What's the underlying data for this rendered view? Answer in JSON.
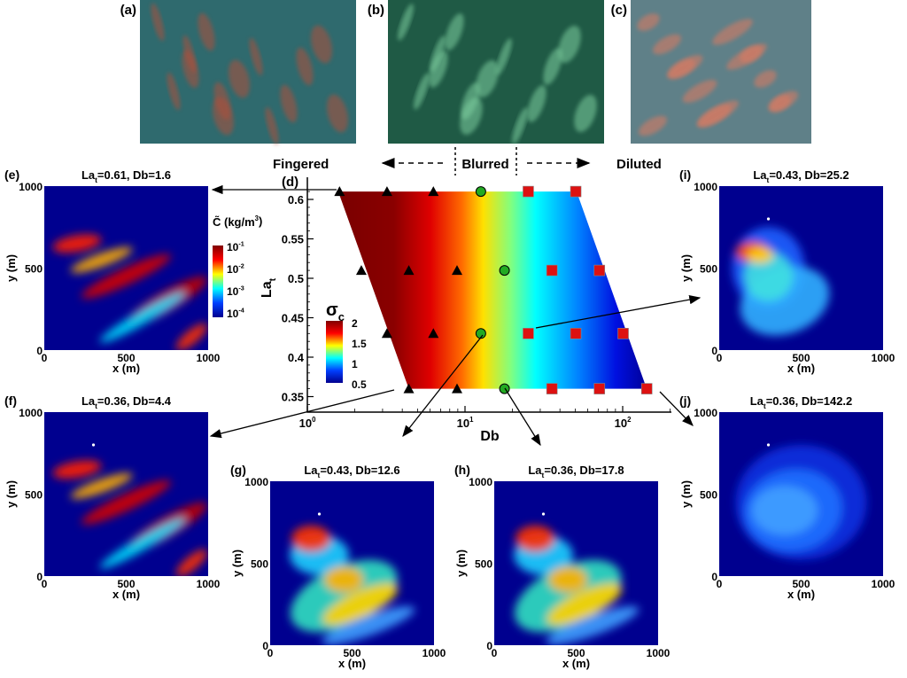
{
  "photos": [
    {
      "label": "(a)",
      "desc_color": "#2f6a6e",
      "streak_color": "#b0503a"
    },
    {
      "label": "(b)",
      "desc_color": "#1f5a45",
      "streak_color": "#7fd0a0"
    },
    {
      "label": "(c)",
      "desc_color": "#5f8088",
      "streak_color": "#e07a60"
    }
  ],
  "regimes": {
    "left": "Fingered",
    "middle": "Blurred",
    "right": "Diluted"
  },
  "chart_data": [
    {
      "panel": "(d)",
      "type": "scatter",
      "xlabel": "Db",
      "ylabel_main": "La",
      "ylabel_sub": "t",
      "xscale": "log",
      "xlim": [
        1,
        200
      ],
      "ylim": [
        0.33,
        0.62
      ],
      "xticks": [
        {
          "base": "10",
          "exp": "0",
          "value": 1
        },
        {
          "base": "10",
          "exp": "1",
          "value": 10
        },
        {
          "base": "10",
          "exp": "2",
          "value": 100
        }
      ],
      "yticks": [
        "0.35",
        "0.4",
        "0.45",
        "0.5",
        "0.55",
        "0.6"
      ],
      "background": "sigma_c contour field (high at low Db, low at high Db)",
      "colorbar": {
        "title_main": "σ",
        "title_sub": "c",
        "ticks": [
          "2",
          "1.5",
          "1",
          "0.5"
        ],
        "range": [
          0.5,
          2
        ],
        "colormap": "jet"
      },
      "series": [
        {
          "marker": "triangle",
          "color": "#000000",
          "points": [
            [
              1.6,
              0.61
            ],
            [
              3.2,
              0.61
            ],
            [
              6.3,
              0.61
            ],
            [
              2.2,
              0.51
            ],
            [
              4.4,
              0.51
            ],
            [
              8.9,
              0.51
            ],
            [
              3.2,
              0.43
            ],
            [
              6.3,
              0.43
            ],
            [
              4.4,
              0.36
            ],
            [
              8.9,
              0.36
            ]
          ]
        },
        {
          "marker": "circle",
          "color": "#22aa22",
          "points": [
            [
              12.6,
              0.61
            ],
            [
              17.8,
              0.51
            ],
            [
              12.6,
              0.43
            ],
            [
              17.8,
              0.36
            ]
          ]
        },
        {
          "marker": "square",
          "color": "#dd1111",
          "points": [
            [
              25.2,
              0.61
            ],
            [
              50.4,
              0.61
            ],
            [
              35.6,
              0.51
            ],
            [
              71.2,
              0.51
            ],
            [
              25.2,
              0.43
            ],
            [
              50.4,
              0.43
            ],
            [
              100.7,
              0.43
            ],
            [
              35.6,
              0.36
            ],
            [
              71.2,
              0.36
            ],
            [
              142.2,
              0.36
            ]
          ]
        }
      ]
    },
    {
      "panel": "(e)",
      "type": "heatmap",
      "title_main": "La",
      "title_sub": "t",
      "title_rest": "=0.61, Db=1.6",
      "la": 0.61,
      "db": 1.6,
      "xlabel": "x (m)",
      "ylabel": "y (m)",
      "xticks": [
        "0",
        "500",
        "1000"
      ],
      "yticks": [
        "0",
        "500",
        "1000"
      ],
      "style": "fingered"
    },
    {
      "panel": "(f)",
      "type": "heatmap",
      "title_main": "La",
      "title_sub": "t",
      "title_rest": "=0.36, Db=4.4",
      "la": 0.36,
      "db": 4.4,
      "xlabel": "x (m)",
      "ylabel": "y (m)",
      "xticks": [
        "0",
        "500",
        "1000"
      ],
      "yticks": [
        "0",
        "500",
        "1000"
      ],
      "style": "fingered"
    },
    {
      "panel": "(g)",
      "type": "heatmap",
      "title_main": "La",
      "title_sub": "t",
      "title_rest": "=0.43, Db=12.6",
      "la": 0.43,
      "db": 12.6,
      "xlabel": "x (m)",
      "ylabel": "y (m)",
      "xticks": [
        "0",
        "500",
        "1000"
      ],
      "yticks": [
        "0",
        "500",
        "1000"
      ],
      "style": "blurred"
    },
    {
      "panel": "(h)",
      "type": "heatmap",
      "title_main": "La",
      "title_sub": "t",
      "title_rest": "=0.36, Db=17.8",
      "la": 0.36,
      "db": 17.8,
      "xlabel": "x (m)",
      "ylabel": "y (m)",
      "xticks": [
        "0",
        "500",
        "1000"
      ],
      "yticks": [
        "0",
        "500",
        "1000"
      ],
      "style": "blurred"
    },
    {
      "panel": "(i)",
      "type": "heatmap",
      "title_main": "La",
      "title_sub": "t",
      "title_rest": "=0.43, Db=25.2",
      "la": 0.43,
      "db": 25.2,
      "xlabel": "x (m)",
      "ylabel": "y (m)",
      "xticks": [
        "0",
        "500",
        "1000"
      ],
      "yticks": [
        "0",
        "500",
        "1000"
      ],
      "style": "diluted"
    },
    {
      "panel": "(j)",
      "type": "heatmap",
      "title_main": "La",
      "title_sub": "t",
      "title_rest": "=0.36, Db=142.2",
      "la": 0.36,
      "db": 142.2,
      "xlabel": "x (m)",
      "ylabel": "y (m)",
      "xticks": [
        "0",
        "500",
        "1000"
      ],
      "yticks": [
        "0",
        "500",
        "1000"
      ],
      "style": "very-diluted"
    }
  ],
  "conc_colorbar": {
    "title": "C̃ (kg/m",
    "title_sup": "3",
    "title_end": ")",
    "ticks": [
      {
        "base": "10",
        "exp": "-1"
      },
      {
        "base": "10",
        "exp": "-2"
      },
      {
        "base": "10",
        "exp": "-3"
      },
      {
        "base": "10",
        "exp": "-4"
      }
    ],
    "colormap": "jet",
    "scale": "log"
  },
  "colors": {
    "field_bg": "#00008f"
  }
}
